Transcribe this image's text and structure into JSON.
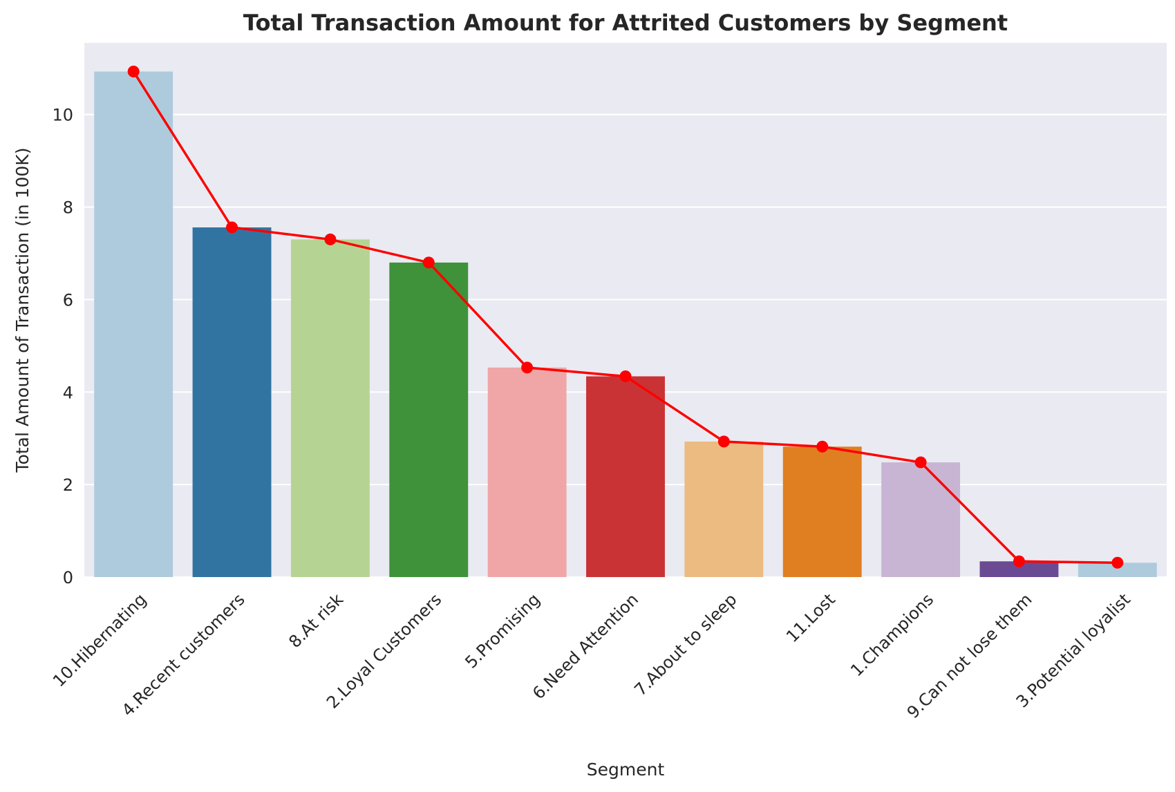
{
  "chart_data": {
    "type": "bar",
    "title": "Total Transaction Amount for Attrited Customers by Segment",
    "xlabel": "Segment",
    "ylabel": "Total Amount of Transaction (in 100K)",
    "ylim": [
      0,
      11.55
    ],
    "yticks": [
      0,
      2,
      4,
      6,
      8,
      10
    ],
    "grid": true,
    "categories": [
      "10.Hibernating",
      "4.Recent customers",
      "8.At risk",
      "2.Loyal Customers",
      "5.Promising",
      "6.Need Attention",
      "7.About to sleep",
      "11.Lost",
      "1.Champions",
      "9.Can not lose them",
      "3.Potential loyalist"
    ],
    "values": [
      10.93,
      7.56,
      7.3,
      6.8,
      4.53,
      4.34,
      2.93,
      2.82,
      2.48,
      0.34,
      0.31
    ],
    "bar_colors": [
      "#aecbdd",
      "#3274a1",
      "#b5d493",
      "#3f923a",
      "#f0a6a6",
      "#c93336",
      "#ecbb82",
      "#e07e22",
      "#c8b5d3",
      "#6a4b93",
      "#aecbdd"
    ],
    "overlay_line": {
      "type": "line",
      "color": "#ff0000",
      "marker": "circle",
      "values": [
        10.93,
        7.56,
        7.3,
        6.8,
        4.53,
        4.34,
        2.93,
        2.82,
        2.48,
        0.34,
        0.31
      ]
    },
    "plot_background": "#eaeaf2"
  }
}
